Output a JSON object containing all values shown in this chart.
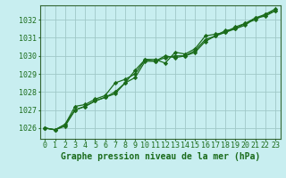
{
  "xlabel": "Graphe pression niveau de la mer (hPa)",
  "bg_color": "#c8eef0",
  "line_color": "#1a6b1a",
  "grid_color": "#a0c8c8",
  "xlim": [
    -0.5,
    23.5
  ],
  "ylim": [
    1025.4,
    1032.8
  ],
  "yticks": [
    1026,
    1027,
    1028,
    1029,
    1030,
    1031,
    1032
  ],
  "xticks": [
    0,
    1,
    2,
    3,
    4,
    5,
    6,
    7,
    8,
    9,
    10,
    11,
    12,
    13,
    14,
    15,
    16,
    17,
    18,
    19,
    20,
    21,
    22,
    23
  ],
  "series1": [
    1026.0,
    1025.9,
    1026.1,
    1027.0,
    1027.2,
    1027.5,
    1027.7,
    1027.9,
    1028.5,
    1029.2,
    1029.8,
    1029.7,
    1030.0,
    1029.9,
    1030.0,
    1030.2,
    1030.8,
    1031.1,
    1031.3,
    1031.5,
    1031.8,
    1032.1,
    1032.3,
    1032.5
  ],
  "series2": [
    1026.0,
    1025.9,
    1026.2,
    1027.2,
    1027.3,
    1027.6,
    1027.8,
    1028.5,
    1028.7,
    1029.0,
    1029.8,
    1029.8,
    1029.6,
    1030.2,
    1030.1,
    1030.4,
    1031.1,
    1031.2,
    1031.3,
    1031.6,
    1031.8,
    1032.0,
    1032.3,
    1032.6
  ],
  "series3": [
    1026.0,
    1025.9,
    1026.2,
    1027.0,
    1027.2,
    1027.5,
    1027.7,
    1028.0,
    1028.5,
    1028.8,
    1029.7,
    1029.7,
    1029.9,
    1030.0,
    1030.0,
    1030.3,
    1030.9,
    1031.1,
    1031.4,
    1031.5,
    1031.7,
    1032.1,
    1032.2,
    1032.5
  ],
  "marker": "D",
  "markersize": 2.2,
  "linewidth": 0.9,
  "xlabel_fontsize": 7,
  "tick_fontsize": 6,
  "spine_color": "#336633"
}
